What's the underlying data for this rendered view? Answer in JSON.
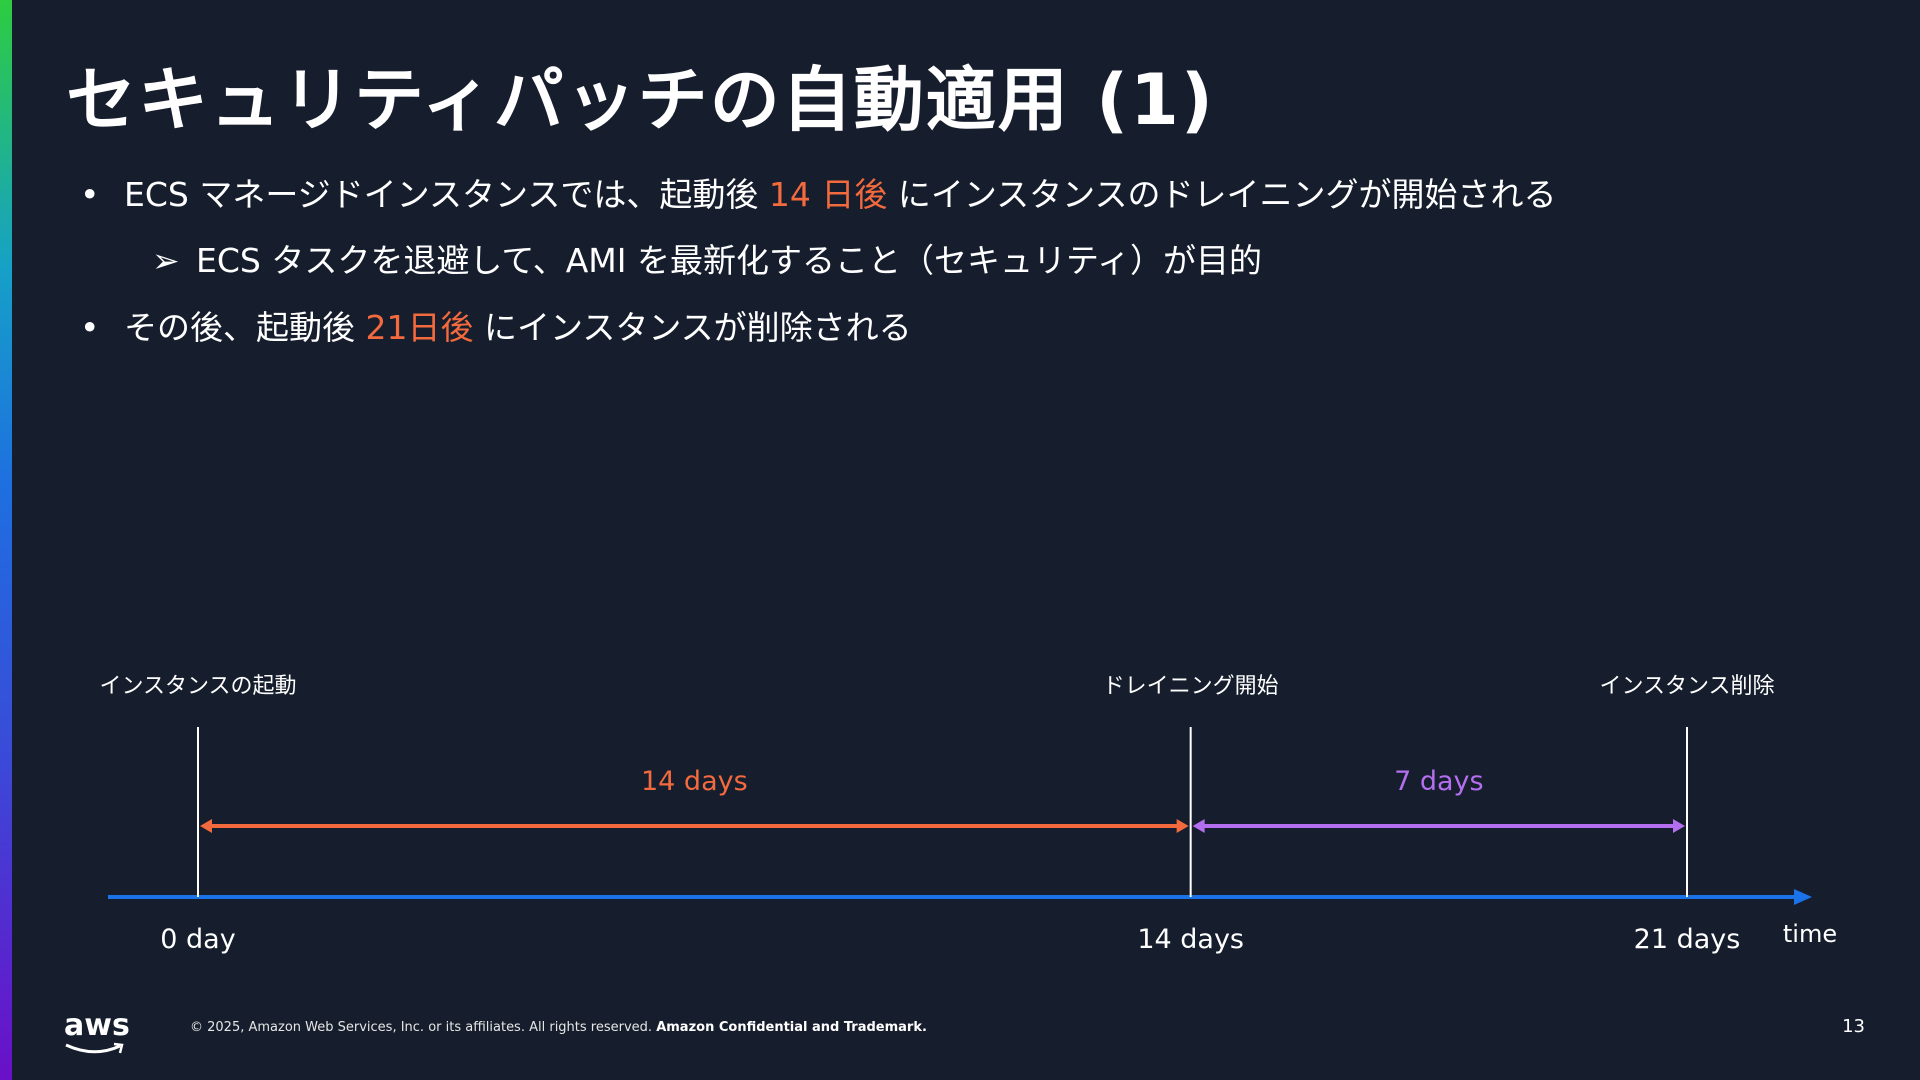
{
  "title": "セキュリティパッチの自動適用 (1)",
  "bullets": [
    {
      "marker": "•",
      "pre": "ECS マネージドインスタンスでは、起動後 ",
      "highlight": "14 日後",
      "post": " にインスタンスのドレイニングが開始される"
    },
    {
      "marker": "➢",
      "pre": "ECS タスクを退避して、AMI を最新化すること（セキュリティ）が目的",
      "highlight": "",
      "post": ""
    },
    {
      "marker": "•",
      "pre": "その後、起動後 ",
      "highlight": "21日後",
      "post": " にインスタンスが削除される"
    }
  ],
  "timeline": {
    "events": [
      {
        "label": "インスタンスの起動",
        "day_label": "0 day",
        "day": 0
      },
      {
        "label": "ドレイニング開始",
        "day_label": "14 days",
        "day": 14
      },
      {
        "label": "インスタンス削除",
        "day_label": "21 days",
        "day": 21
      }
    ],
    "spans": [
      {
        "label": "14 days",
        "from": 0,
        "to": 14,
        "color": "#f26a3d"
      },
      {
        "label": "7 days",
        "from": 14,
        "to": 21,
        "color": "#b36ff0"
      }
    ],
    "axis_label": "time",
    "axis_color": "#1a73e8",
    "highlight_color": "#f26a3d"
  },
  "footer": {
    "copyright": "© 2025, Amazon Web Services, Inc. or its affiliates. All rights reserved.",
    "confidential": "Amazon Confidential and Trademark.",
    "logo": "aws",
    "page_number": "13"
  }
}
